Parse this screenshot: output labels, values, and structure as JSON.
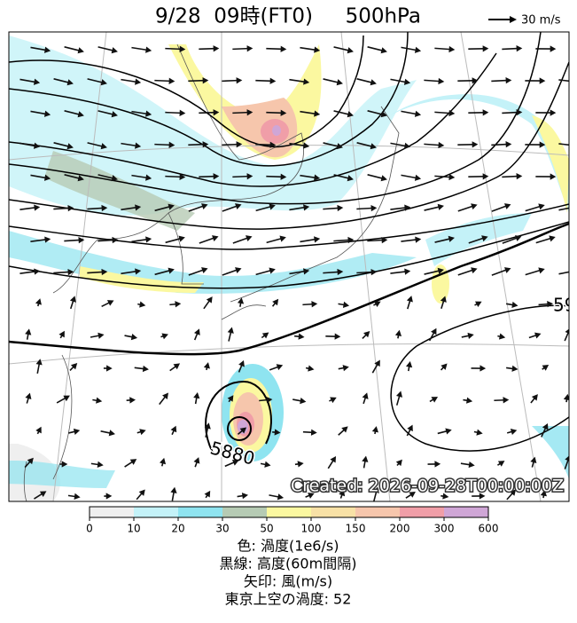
{
  "header": {
    "title": "9/28  09時(FT0)     500hPa",
    "scale_label": "30 m/s"
  },
  "map": {
    "contour_labels": [
      "5880",
      "59"
    ],
    "created": "Created: 2026-09-28T00:00:00Z"
  },
  "colorbar": {
    "ticks": [
      0,
      10,
      20,
      30,
      50,
      100,
      150,
      200,
      300,
      600
    ],
    "colors": [
      "#efefef",
      "#c4f2f8",
      "#8fe4f0",
      "#b6cbb4",
      "#fbf8a0",
      "#f8e1a6",
      "#f6c6ac",
      "#f09ea8",
      "#cfa6d6"
    ]
  },
  "captions": [
    "色: 渦度(1e6/s)",
    "黒線: 高度(60m間隔)",
    "矢印: 風(m/s)",
    "東京上空の渦度: 52"
  ]
}
